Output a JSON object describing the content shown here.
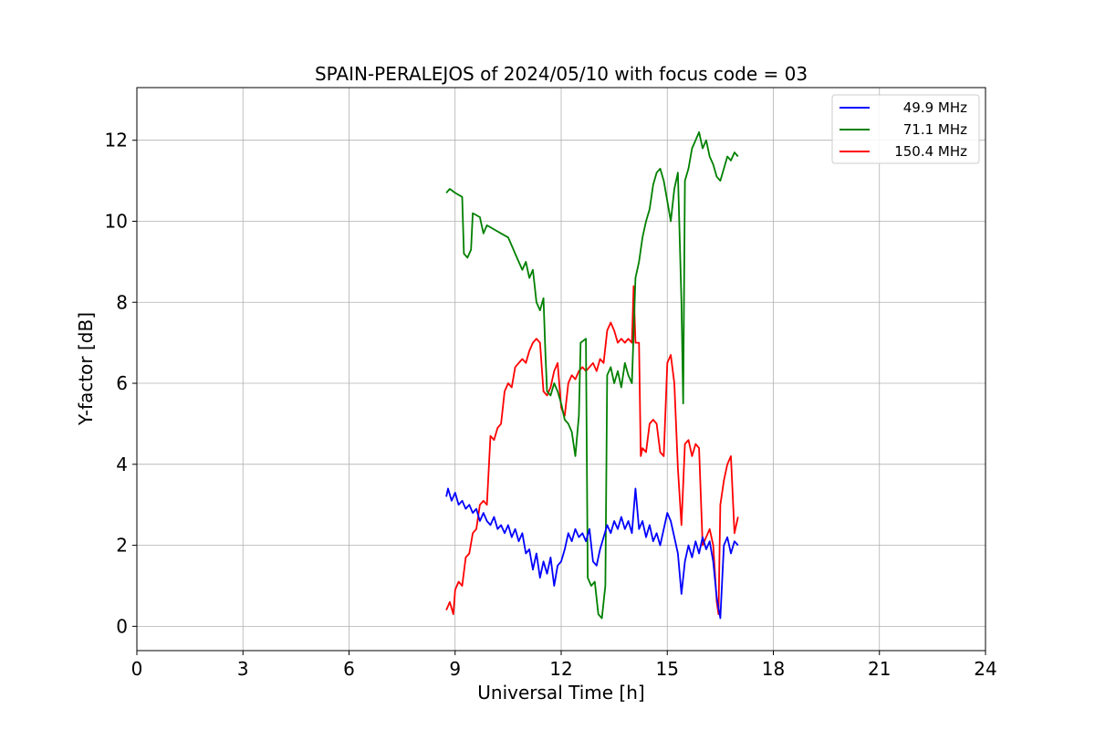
{
  "chart_data": {
    "type": "line",
    "title": "SPAIN-PERALEJOS of 2024/05/10 with focus code = 03",
    "xlabel": "Universal Time [h]",
    "ylabel": "Y-factor [dB]",
    "xlim": [
      0,
      24
    ],
    "ylim": [
      -0.6,
      13.3
    ],
    "xticks": [
      0,
      3,
      6,
      9,
      12,
      15,
      18,
      21,
      24
    ],
    "yticks": [
      0,
      2,
      4,
      6,
      8,
      10,
      12
    ],
    "grid": true,
    "legend_position": "top-right",
    "series": [
      {
        "name": "49.9 MHz",
        "color": "#0000ff",
        "points": [
          [
            8.75,
            3.2
          ],
          [
            8.8,
            3.4
          ],
          [
            8.9,
            3.1
          ],
          [
            9.0,
            3.3
          ],
          [
            9.1,
            3.0
          ],
          [
            9.2,
            3.1
          ],
          [
            9.3,
            2.9
          ],
          [
            9.4,
            3.0
          ],
          [
            9.5,
            2.8
          ],
          [
            9.6,
            2.9
          ],
          [
            9.7,
            2.6
          ],
          [
            9.8,
            2.8
          ],
          [
            9.9,
            2.6
          ],
          [
            10.0,
            2.5
          ],
          [
            10.1,
            2.7
          ],
          [
            10.2,
            2.4
          ],
          [
            10.3,
            2.5
          ],
          [
            10.4,
            2.3
          ],
          [
            10.5,
            2.5
          ],
          [
            10.6,
            2.2
          ],
          [
            10.7,
            2.4
          ],
          [
            10.8,
            2.1
          ],
          [
            10.9,
            2.3
          ],
          [
            11.0,
            1.8
          ],
          [
            11.1,
            1.9
          ],
          [
            11.2,
            1.4
          ],
          [
            11.3,
            1.8
          ],
          [
            11.4,
            1.2
          ],
          [
            11.5,
            1.6
          ],
          [
            11.6,
            1.3
          ],
          [
            11.7,
            1.7
          ],
          [
            11.8,
            1.0
          ],
          [
            11.9,
            1.5
          ],
          [
            12.0,
            1.6
          ],
          [
            12.1,
            1.9
          ],
          [
            12.2,
            2.3
          ],
          [
            12.3,
            2.1
          ],
          [
            12.4,
            2.4
          ],
          [
            12.5,
            2.2
          ],
          [
            12.6,
            2.3
          ],
          [
            12.7,
            2.1
          ],
          [
            12.8,
            2.4
          ],
          [
            12.9,
            1.6
          ],
          [
            13.0,
            1.5
          ],
          [
            13.1,
            1.9
          ],
          [
            13.2,
            2.2
          ],
          [
            13.3,
            2.5
          ],
          [
            13.4,
            2.3
          ],
          [
            13.5,
            2.6
          ],
          [
            13.6,
            2.4
          ],
          [
            13.7,
            2.7
          ],
          [
            13.8,
            2.4
          ],
          [
            13.9,
            2.6
          ],
          [
            14.0,
            2.3
          ],
          [
            14.1,
            3.4
          ],
          [
            14.2,
            2.4
          ],
          [
            14.3,
            2.6
          ],
          [
            14.4,
            2.2
          ],
          [
            14.5,
            2.5
          ],
          [
            14.6,
            2.1
          ],
          [
            14.7,
            2.3
          ],
          [
            14.8,
            2.0
          ],
          [
            14.9,
            2.4
          ],
          [
            15.0,
            2.8
          ],
          [
            15.1,
            2.6
          ],
          [
            15.2,
            2.2
          ],
          [
            15.3,
            1.8
          ],
          [
            15.4,
            0.8
          ],
          [
            15.5,
            1.6
          ],
          [
            15.6,
            2.0
          ],
          [
            15.7,
            1.7
          ],
          [
            15.8,
            2.1
          ],
          [
            15.9,
            1.8
          ],
          [
            16.0,
            2.2
          ],
          [
            16.1,
            1.9
          ],
          [
            16.2,
            2.1
          ],
          [
            16.3,
            1.6
          ],
          [
            16.4,
            0.7
          ],
          [
            16.5,
            0.2
          ],
          [
            16.6,
            2.0
          ],
          [
            16.7,
            2.2
          ],
          [
            16.8,
            1.8
          ],
          [
            16.9,
            2.1
          ],
          [
            17.0,
            2.0
          ]
        ]
      },
      {
        "name": "71.1 MHz",
        "color": "#008000",
        "points": [
          [
            8.75,
            10.7
          ],
          [
            8.85,
            10.8
          ],
          [
            9.0,
            10.7
          ],
          [
            9.2,
            10.6
          ],
          [
            9.25,
            9.2
          ],
          [
            9.35,
            9.1
          ],
          [
            9.45,
            9.3
          ],
          [
            9.5,
            10.2
          ],
          [
            9.7,
            10.1
          ],
          [
            9.8,
            9.7
          ],
          [
            9.9,
            9.9
          ],
          [
            10.1,
            9.8
          ],
          [
            10.3,
            9.7
          ],
          [
            10.5,
            9.6
          ],
          [
            10.6,
            9.4
          ],
          [
            10.7,
            9.2
          ],
          [
            10.8,
            9.0
          ],
          [
            10.9,
            8.8
          ],
          [
            11.0,
            9.0
          ],
          [
            11.1,
            8.6
          ],
          [
            11.2,
            8.8
          ],
          [
            11.3,
            8.0
          ],
          [
            11.4,
            7.8
          ],
          [
            11.5,
            8.1
          ],
          [
            11.55,
            6.8
          ],
          [
            11.6,
            5.8
          ],
          [
            11.7,
            5.7
          ],
          [
            11.8,
            6.0
          ],
          [
            11.9,
            5.8
          ],
          [
            12.0,
            5.5
          ],
          [
            12.1,
            5.1
          ],
          [
            12.2,
            5.0
          ],
          [
            12.3,
            4.8
          ],
          [
            12.4,
            4.2
          ],
          [
            12.5,
            5.2
          ],
          [
            12.55,
            7.0
          ],
          [
            12.7,
            7.1
          ],
          [
            12.75,
            1.2
          ],
          [
            12.85,
            1.0
          ],
          [
            12.95,
            1.1
          ],
          [
            13.05,
            0.3
          ],
          [
            13.15,
            0.2
          ],
          [
            13.25,
            1.0
          ],
          [
            13.3,
            6.2
          ],
          [
            13.4,
            6.4
          ],
          [
            13.5,
            6.0
          ],
          [
            13.6,
            6.3
          ],
          [
            13.7,
            5.9
          ],
          [
            13.8,
            6.5
          ],
          [
            13.9,
            6.2
          ],
          [
            14.0,
            6.0
          ],
          [
            14.1,
            8.6
          ],
          [
            14.2,
            9.0
          ],
          [
            14.3,
            9.6
          ],
          [
            14.4,
            10.0
          ],
          [
            14.5,
            10.3
          ],
          [
            14.6,
            10.9
          ],
          [
            14.7,
            11.2
          ],
          [
            14.8,
            11.3
          ],
          [
            14.9,
            11.0
          ],
          [
            15.0,
            10.5
          ],
          [
            15.1,
            10.0
          ],
          [
            15.2,
            10.8
          ],
          [
            15.3,
            11.2
          ],
          [
            15.4,
            8.0
          ],
          [
            15.45,
            5.5
          ],
          [
            15.5,
            11.0
          ],
          [
            15.6,
            11.3
          ],
          [
            15.7,
            11.8
          ],
          [
            15.8,
            12.0
          ],
          [
            15.9,
            12.2
          ],
          [
            16.0,
            11.8
          ],
          [
            16.1,
            12.0
          ],
          [
            16.2,
            11.6
          ],
          [
            16.3,
            11.4
          ],
          [
            16.4,
            11.1
          ],
          [
            16.5,
            11.0
          ],
          [
            16.6,
            11.3
          ],
          [
            16.7,
            11.6
          ],
          [
            16.8,
            11.5
          ],
          [
            16.9,
            11.7
          ],
          [
            17.0,
            11.6
          ]
        ]
      },
      {
        "name": "150.4 MHz",
        "color": "#ff0000",
        "points": [
          [
            8.75,
            0.4
          ],
          [
            8.85,
            0.6
          ],
          [
            8.95,
            0.3
          ],
          [
            9.0,
            0.9
          ],
          [
            9.1,
            1.1
          ],
          [
            9.2,
            1.0
          ],
          [
            9.3,
            1.7
          ],
          [
            9.4,
            1.8
          ],
          [
            9.5,
            2.3
          ],
          [
            9.6,
            2.4
          ],
          [
            9.7,
            3.0
          ],
          [
            9.8,
            3.1
          ],
          [
            9.9,
            3.0
          ],
          [
            10.0,
            4.7
          ],
          [
            10.1,
            4.6
          ],
          [
            10.2,
            4.9
          ],
          [
            10.3,
            5.0
          ],
          [
            10.4,
            5.8
          ],
          [
            10.5,
            6.0
          ],
          [
            10.6,
            5.9
          ],
          [
            10.7,
            6.4
          ],
          [
            10.8,
            6.5
          ],
          [
            10.9,
            6.6
          ],
          [
            11.0,
            6.5
          ],
          [
            11.1,
            6.8
          ],
          [
            11.2,
            7.0
          ],
          [
            11.3,
            7.1
          ],
          [
            11.4,
            7.0
          ],
          [
            11.5,
            5.8
          ],
          [
            11.6,
            5.7
          ],
          [
            11.7,
            5.9
          ],
          [
            11.8,
            6.3
          ],
          [
            11.9,
            6.5
          ],
          [
            12.0,
            5.4
          ],
          [
            12.1,
            5.2
          ],
          [
            12.2,
            6.0
          ],
          [
            12.3,
            6.2
          ],
          [
            12.4,
            6.1
          ],
          [
            12.5,
            6.3
          ],
          [
            12.6,
            6.4
          ],
          [
            12.7,
            6.3
          ],
          [
            12.8,
            6.4
          ],
          [
            12.9,
            6.5
          ],
          [
            13.0,
            6.3
          ],
          [
            13.1,
            6.6
          ],
          [
            13.2,
            6.5
          ],
          [
            13.3,
            7.3
          ],
          [
            13.4,
            7.5
          ],
          [
            13.5,
            7.3
          ],
          [
            13.6,
            7.0
          ],
          [
            13.7,
            7.1
          ],
          [
            13.8,
            7.0
          ],
          [
            13.9,
            7.1
          ],
          [
            14.0,
            7.0
          ],
          [
            14.05,
            8.4
          ],
          [
            14.1,
            7.0
          ],
          [
            14.2,
            7.0
          ],
          [
            14.25,
            4.2
          ],
          [
            14.3,
            4.4
          ],
          [
            14.4,
            4.3
          ],
          [
            14.5,
            5.0
          ],
          [
            14.6,
            5.1
          ],
          [
            14.7,
            5.0
          ],
          [
            14.8,
            4.3
          ],
          [
            14.9,
            4.2
          ],
          [
            15.0,
            6.5
          ],
          [
            15.1,
            6.7
          ],
          [
            15.2,
            6.0
          ],
          [
            15.3,
            3.9
          ],
          [
            15.4,
            2.5
          ],
          [
            15.5,
            4.5
          ],
          [
            15.6,
            4.6
          ],
          [
            15.7,
            4.2
          ],
          [
            15.8,
            4.5
          ],
          [
            15.9,
            4.4
          ],
          [
            16.0,
            2.0
          ],
          [
            16.1,
            2.2
          ],
          [
            16.2,
            2.4
          ],
          [
            16.3,
            2.0
          ],
          [
            16.4,
            0.6
          ],
          [
            16.45,
            0.3
          ],
          [
            16.5,
            3.0
          ],
          [
            16.6,
            3.6
          ],
          [
            16.7,
            4.0
          ],
          [
            16.8,
            4.2
          ],
          [
            16.9,
            2.3
          ],
          [
            17.0,
            2.7
          ]
        ]
      }
    ]
  }
}
